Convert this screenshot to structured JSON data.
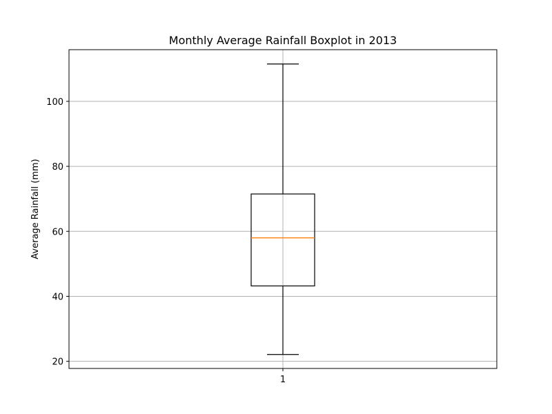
{
  "chart_data": {
    "type": "boxplot",
    "title": "Monthly Average Rainfall Boxplot in 2013",
    "xlabel": "",
    "ylabel": "Average Rainfall (mm)",
    "categories": [
      "1"
    ],
    "ylim": [
      17.8,
      115.9
    ],
    "yticks": [
      20,
      40,
      60,
      80,
      100
    ],
    "grid": true,
    "boxes": [
      {
        "category": "1",
        "whisker_low": 22.1,
        "q1": 43.2,
        "median": 58.0,
        "q3": 71.5,
        "whisker_high": 111.5
      }
    ],
    "colors": {
      "box": "#000000",
      "median": "#ff7f0e",
      "grid": "#b0b0b0"
    }
  }
}
